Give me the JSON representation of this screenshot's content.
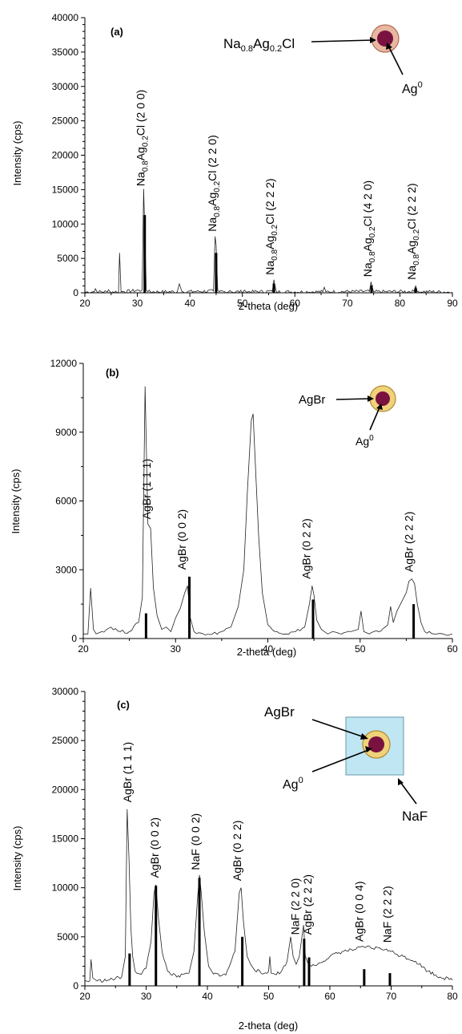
{
  "chart_data": [
    {
      "type": "line",
      "panel_label": "(a)",
      "xlabel": "2-theta (deg)",
      "ylabel": "Intensity (cps)",
      "xlim": [
        20,
        90
      ],
      "ylim": [
        0,
        40000
      ],
      "xticks": [
        20,
        30,
        40,
        50,
        60,
        70,
        80,
        90
      ],
      "yticks": [
        0,
        5000,
        10000,
        15000,
        20000,
        25000,
        30000,
        35000,
        40000
      ],
      "series": [
        {
          "x": [
            20,
            21.8,
            22,
            22.3,
            24.3,
            24.5,
            24.8,
            26.4,
            26.6,
            26.9,
            30.9,
            31.2,
            31.4,
            31.7,
            32.0,
            37.6,
            38.0,
            38.5,
            44.5,
            44.8,
            45.0,
            45.3,
            45.6,
            47.4,
            47.6,
            47.9,
            50.2,
            50.4,
            50.7,
            55.7,
            56.0,
            56.3,
            56.5,
            65.3,
            65.6,
            65.9,
            74.2,
            74.5,
            74.7,
            75.0,
            82.7,
            83.0,
            83.3,
            90
          ],
          "y": [
            100,
            150,
            600,
            150,
            150,
            450,
            150,
            150,
            5800,
            150,
            400,
            15100,
            9000,
            400,
            150,
            150,
            1300,
            150,
            250,
            8200,
            7000,
            400,
            150,
            150,
            350,
            150,
            150,
            400,
            150,
            200,
            1900,
            700,
            150,
            150,
            800,
            150,
            200,
            1600,
            900,
            150,
            200,
            1000,
            200,
            100
          ]
        }
      ],
      "sticks": {
        "x": [
          31.4,
          45.0,
          56.0,
          74.6,
          83.0
        ],
        "y": [
          11300,
          5800,
          1350,
          1100,
          750
        ]
      },
      "peak_labels": [
        {
          "x": 31.4,
          "y_start": 15500,
          "lead": "Na",
          "sub1": "0.8",
          "mid": "Ag",
          "sub2": "0.2",
          "tail": "Cl",
          "hkl": "(2 0 0)"
        },
        {
          "x": 45.0,
          "y_start": 8900,
          "lead": "Na",
          "sub1": "0.8",
          "mid": "Ag",
          "sub2": "0.2",
          "tail": "Cl",
          "hkl": "(2 2 0)"
        },
        {
          "x": 56.0,
          "y_start": 2600,
          "lead": "Na",
          "sub1": "0.8",
          "mid": "Ag",
          "sub2": "0.2",
          "tail": "Cl",
          "hkl": "(2 2 2)"
        },
        {
          "x": 74.6,
          "y_start": 2300,
          "lead": "Na",
          "sub1": "0.8",
          "mid": "Ag",
          "sub2": "0.2",
          "tail": "Cl",
          "hkl": "(4 2 0)"
        },
        {
          "x": 83.0,
          "y_start": 1900,
          "lead": "Na",
          "sub1": "0.8",
          "mid": "Ag",
          "sub2": "0.2",
          "tail": "Cl",
          "hkl": "(2 2 2)"
        }
      ],
      "inset": {
        "shell_lead": "Na",
        "shell_sub1": "0.8",
        "shell_mid": "Ag",
        "shell_sub2": "0.2",
        "shell_tail": "Cl",
        "core_label": "Ag",
        "core_sup": "0",
        "shell_color": "#e8b7a2",
        "core_color": "#7a1240"
      }
    },
    {
      "type": "line",
      "panel_label": "(b)",
      "xlabel": "2-theta (deg)",
      "ylabel": "Intensity (cps)",
      "xlim": [
        20,
        60
      ],
      "ylim": [
        0,
        12000
      ],
      "xticks": [
        20,
        30,
        40,
        50,
        60
      ],
      "yticks": [
        0,
        3000,
        6000,
        9000,
        12000
      ],
      "series": [
        {
          "x": [
            20,
            20.5,
            20.8,
            21.1,
            21.4,
            22,
            23,
            24,
            25,
            26,
            26.4,
            26.7,
            27.0,
            27.3,
            27.6,
            28,
            28.5,
            29,
            29.5,
            30,
            30.5,
            31,
            31.3,
            31.6,
            32,
            33,
            34,
            35,
            36,
            36.8,
            37.4,
            37.8,
            38.2,
            38.4,
            38.6,
            39,
            39.4,
            40,
            41,
            42,
            43,
            44,
            44.5,
            44.8,
            45,
            45.3,
            45.8,
            46.5,
            47,
            48,
            49,
            49.8,
            50.1,
            50.4,
            51,
            52,
            53,
            53.3,
            53.6,
            54,
            54.5,
            55,
            55.3,
            55.6,
            55.9,
            56.2,
            56.6,
            57,
            58,
            59,
            60
          ],
          "y": [
            200,
            200,
            2200,
            400,
            200,
            300,
            500,
            300,
            300,
            700,
            1800,
            11000,
            5000,
            4800,
            2200,
            1000,
            400,
            500,
            300,
            900,
            1300,
            2000,
            2300,
            900,
            300,
            200,
            200,
            300,
            500,
            1400,
            3000,
            6500,
            9500,
            9800,
            8000,
            4500,
            2000,
            600,
            300,
            200,
            300,
            500,
            1500,
            2300,
            1900,
            800,
            400,
            200,
            300,
            200,
            300,
            400,
            1200,
            300,
            200,
            300,
            600,
            1400,
            700,
            1200,
            1600,
            2000,
            2500,
            2600,
            2400,
            1500,
            700,
            300,
            200,
            200,
            200
          ]
        }
      ],
      "sticks": {
        "x": [
          26.8,
          31.5,
          44.9,
          55.8
        ],
        "y": [
          1100,
          2700,
          1700,
          1500
        ]
      },
      "peak_labels": [
        {
          "x": 27.3,
          "y_start": 5200,
          "text": "AgBr",
          "hkl": "(1 1 1)"
        },
        {
          "x": 31.1,
          "y_start": 3000,
          "text": "AgBr",
          "hkl": "(0 0 2)"
        },
        {
          "x": 44.6,
          "y_start": 2600,
          "text": "AgBr",
          "hkl": "(0 2 2)"
        },
        {
          "x": 55.7,
          "y_start": 2900,
          "text": "AgBr",
          "hkl": "(2 2 2)"
        }
      ],
      "inset": {
        "shell_label": "AgBr",
        "core_label": "Ag",
        "core_sup": "0",
        "shell_color": "#f0d27a",
        "core_color": "#7a1240"
      }
    },
    {
      "type": "line",
      "panel_label": "(c)",
      "xlabel": "2-theta (deg)",
      "ylabel": "Intensity (cps)",
      "xlim": [
        20,
        80
      ],
      "ylim": [
        0,
        30000
      ],
      "xticks": [
        20,
        30,
        40,
        50,
        60,
        70,
        80
      ],
      "yticks": [
        0,
        5000,
        10000,
        15000,
        20000,
        25000,
        30000
      ],
      "series": [
        {
          "x": [
            20,
            20.8,
            21.0,
            21.3,
            22,
            24,
            26,
            26.6,
            26.9,
            27.2,
            27.5,
            27.8,
            28.2,
            29,
            30,
            30.8,
            31.3,
            31.6,
            32,
            32.6,
            33.5,
            35,
            37,
            37.8,
            38.4,
            38.7,
            39,
            39.5,
            40.2,
            41,
            43,
            44.5,
            45.2,
            45.5,
            45.9,
            46.5,
            47.5,
            49,
            50,
            50.2,
            50.4,
            51,
            52,
            53,
            53.6,
            54,
            54.5,
            55,
            55.7,
            56.0,
            56.5,
            57,
            58,
            60,
            62,
            64,
            66,
            67,
            68,
            69,
            70,
            71,
            72,
            74,
            76,
            78,
            80
          ],
          "y": [
            500,
            500,
            2700,
            800,
            500,
            600,
            900,
            3000,
            18000,
            13000,
            6000,
            3000,
            1500,
            1200,
            1800,
            4500,
            9500,
            10300,
            7000,
            3500,
            1500,
            900,
            1300,
            3500,
            9000,
            11300,
            9500,
            5500,
            2000,
            1200,
            1100,
            3500,
            9500,
            10000,
            6500,
            3000,
            1800,
            1200,
            1500,
            3000,
            1300,
            1200,
            1400,
            2500,
            5000,
            3000,
            2200,
            3000,
            6200,
            3000,
            2200,
            2000,
            2200,
            3000,
            3500,
            3700,
            4000,
            3800,
            3900,
            3700,
            3500,
            3200,
            3000,
            2500,
            1500,
            900,
            600
          ]
        }
      ],
      "sticks": {
        "x": [
          27.3,
          31.6,
          38.7,
          45.7,
          55.8,
          56.6,
          65.6,
          69.8
        ],
        "y": [
          3300,
          10200,
          11000,
          5000,
          4800,
          2900,
          1700,
          1300
        ]
      },
      "peak_labels": [
        {
          "x": 27.6,
          "y_start": 18700,
          "text": "AgBr",
          "hkl": "(1 1 1)"
        },
        {
          "x": 32.0,
          "y_start": 11000,
          "text": "AgBr",
          "hkl": "(0 0 2)"
        },
        {
          "x": 38.7,
          "y_start": 11800,
          "text": "NaF",
          "hkl": "(0 0 2)"
        },
        {
          "x": 45.5,
          "y_start": 10700,
          "text": "NaF",
          "hkl": "(2 2 0)",
          "first": "AgBr",
          "first_hkl": "(0 2 2)"
        },
        {
          "x": 55.0,
          "y_start": 5200,
          "text": "NaF",
          "hkl": "(2 2 0)"
        },
        {
          "x": 57.0,
          "y_start": 5200,
          "text": "AgBr",
          "hkl": "(2 2 2)"
        },
        {
          "x": 65.4,
          "y_start": 4500,
          "text": "AgBr",
          "hkl": "(0 0 4)"
        },
        {
          "x": 70.0,
          "y_start": 4400,
          "text": "NaF",
          "hkl": "(2 2 2)"
        }
      ],
      "inset": {
        "shell_label": "AgBr",
        "core_label": "Ag",
        "core_sup": "0",
        "matrix_label": "NaF",
        "shell_color": "#f0d27a",
        "core_color": "#7a1240",
        "matrix_color": "#bfe6f2"
      }
    }
  ]
}
